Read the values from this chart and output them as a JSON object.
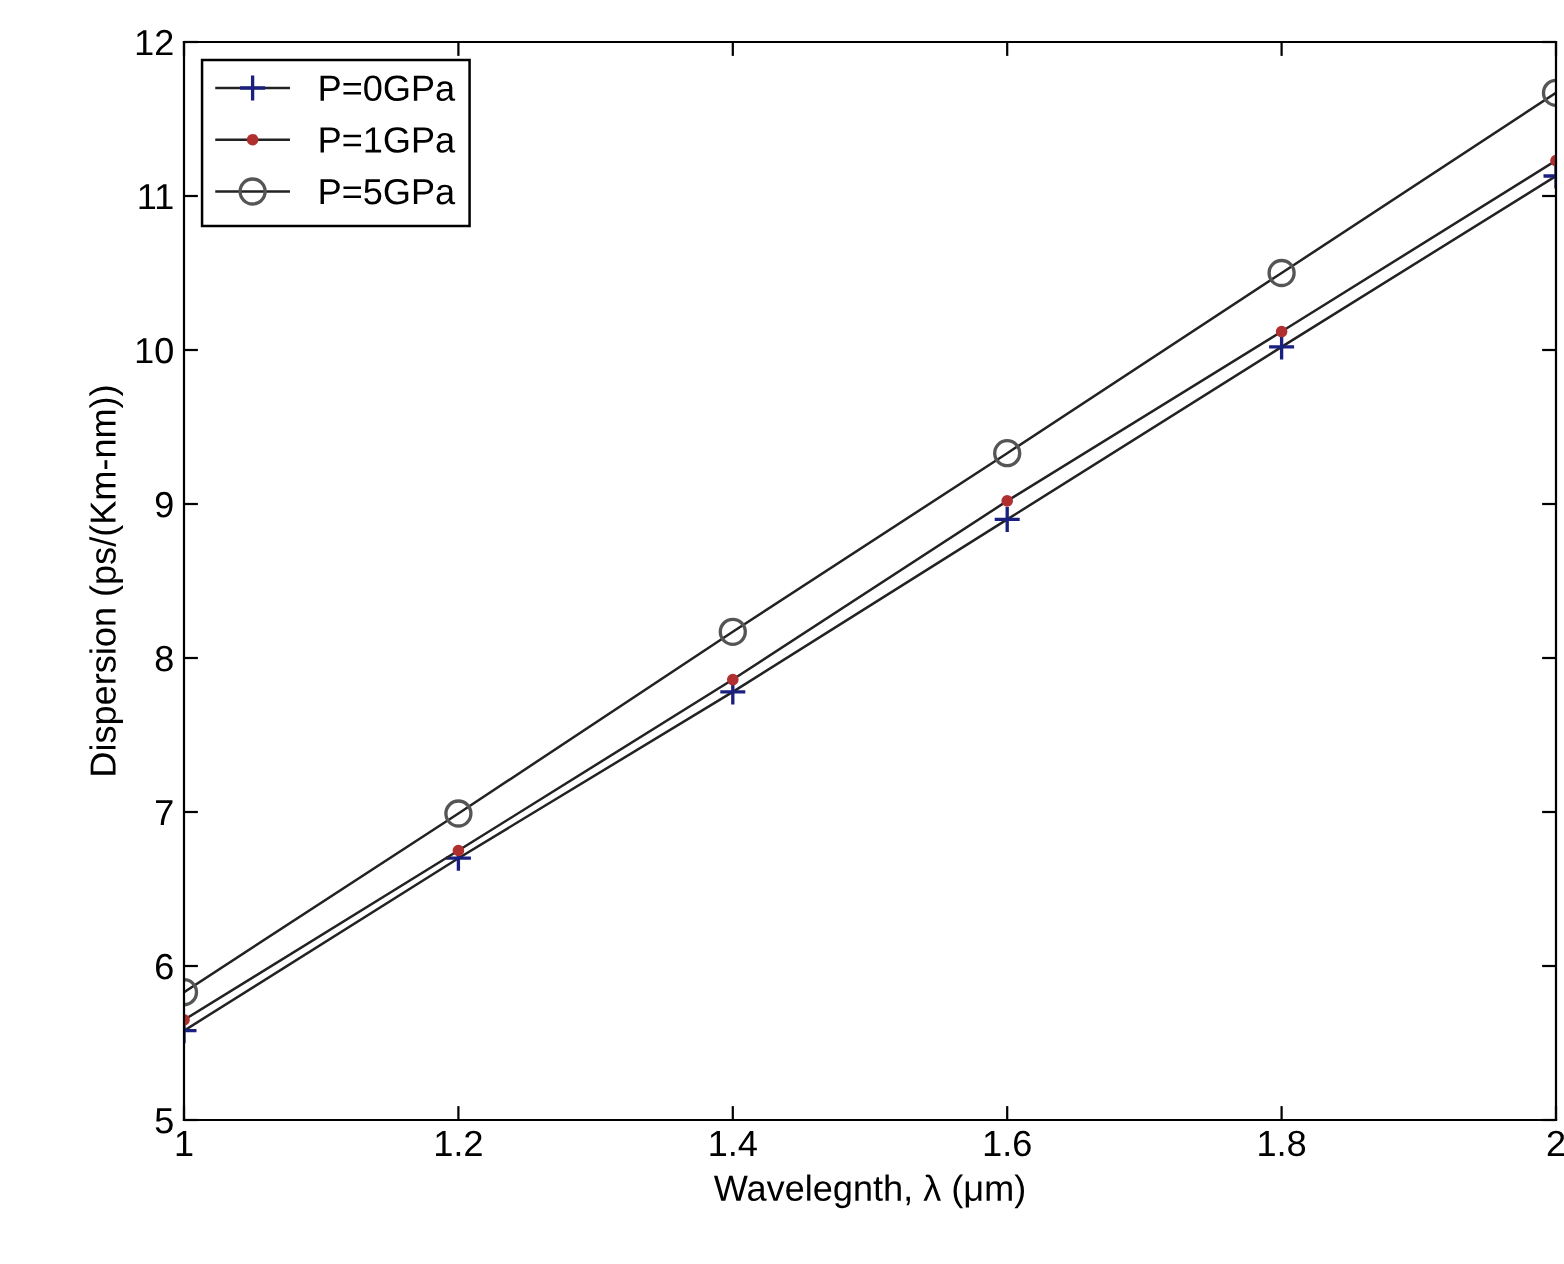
{
  "chart_data": {
    "type": "line",
    "xlabel": "Wavelegnth, λ (μm)",
    "ylabel": "Dispersion (ps/(Km-nm))",
    "x": [
      1,
      1.2,
      1.4,
      1.6,
      1.8,
      2
    ],
    "series": [
      {
        "name": "P=0GPa",
        "color": "#1a2080",
        "marker": "cross",
        "values": [
          5.58,
          6.7,
          7.78,
          8.9,
          10.02,
          11.13
        ]
      },
      {
        "name": "P=1GPa",
        "color": "#b03030",
        "marker": "point",
        "values": [
          5.65,
          6.75,
          7.86,
          9.02,
          10.12,
          11.23
        ]
      },
      {
        "name": "P=5GPa",
        "color": "#555555",
        "marker": "circle",
        "values": [
          5.83,
          6.99,
          8.17,
          9.33,
          10.5,
          11.67
        ]
      }
    ],
    "xlim": [
      1,
      2
    ],
    "xticks": [
      1,
      1.2,
      1.4,
      1.6,
      1.8,
      2
    ],
    "ylim": [
      5,
      12
    ],
    "yticks": [
      5,
      6,
      7,
      8,
      9,
      10,
      11,
      12
    ],
    "grid": false,
    "legend": "top left",
    "line_style": "solid"
  }
}
